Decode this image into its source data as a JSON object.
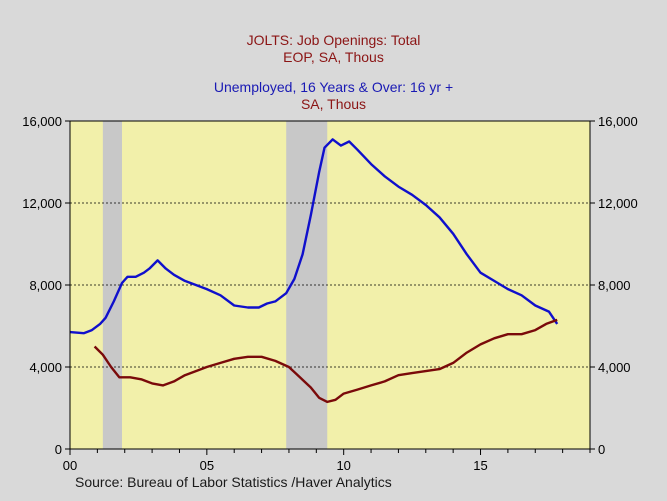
{
  "titles": {
    "line1": "JOLTS: Job Openings: Total",
    "line2": "EOP, SA, Thous",
    "line3": "Unemployed, 16 Years & Over: 16 yr +",
    "line4": "SA, Thous"
  },
  "source": "Source:  Bureau of Labor Statistics /Haver Analytics",
  "colors": {
    "background": "#d9d9d9",
    "plot_background": "#f2f0aa",
    "recession": "#c8c8c8",
    "unemployed": "#1010cc",
    "job_openings": "#7a0a0a"
  },
  "chart_data": {
    "type": "line",
    "x_ticks": [
      {
        "year": 2000,
        "label": "00"
      },
      {
        "year": 2005,
        "label": "05"
      },
      {
        "year": 2010,
        "label": "10"
      },
      {
        "year": 2015,
        "label": "15"
      }
    ],
    "xlim": [
      2000,
      2019
    ],
    "ylim": [
      0,
      16000
    ],
    "y_ticks": [
      0,
      4000,
      8000,
      12000,
      16000
    ],
    "y_tick_labels": [
      "0",
      "4,000",
      "8,000",
      "12,000",
      "16,000"
    ],
    "grid": "horizontal dotted",
    "recessions": [
      [
        2001.2,
        2001.9
      ],
      [
        2007.9,
        2009.4
      ]
    ],
    "series": [
      {
        "name": "Unemployed, 16 Years & Over: 16 yr +",
        "color": "#1010cc",
        "x": [
          2000.0,
          2000.5,
          2000.8,
          2001.1,
          2001.3,
          2001.6,
          2001.9,
          2002.1,
          2002.4,
          2002.7,
          2002.9,
          2003.2,
          2003.5,
          2003.8,
          2004.2,
          2004.6,
          2005.0,
          2005.5,
          2006.0,
          2006.5,
          2006.9,
          2007.2,
          2007.5,
          2007.9,
          2008.2,
          2008.5,
          2008.8,
          2009.1,
          2009.3,
          2009.6,
          2009.9,
          2010.2,
          2010.5,
          2011.0,
          2011.5,
          2012.0,
          2012.5,
          2013.0,
          2013.5,
          2014.0,
          2014.5,
          2015.0,
          2015.5,
          2016.0,
          2016.5,
          2017.0,
          2017.5,
          2017.8
        ],
        "values": [
          5700,
          5650,
          5800,
          6100,
          6400,
          7200,
          8100,
          8400,
          8400,
          8600,
          8800,
          9200,
          8800,
          8500,
          8200,
          8000,
          7800,
          7500,
          7000,
          6900,
          6900,
          7100,
          7200,
          7600,
          8300,
          9500,
          11400,
          13500,
          14700,
          15100,
          14800,
          15000,
          14600,
          13900,
          13300,
          12800,
          12400,
          11900,
          11300,
          10500,
          9500,
          8600,
          8200,
          7800,
          7500,
          7000,
          6700,
          6100
        ]
      },
      {
        "name": "JOLTS: Job Openings: Total",
        "color": "#7a0a0a",
        "x": [
          2000.9,
          2001.2,
          2001.5,
          2001.8,
          2002.2,
          2002.6,
          2003.0,
          2003.4,
          2003.8,
          2004.2,
          2004.6,
          2005.0,
          2005.5,
          2006.0,
          2006.5,
          2007.0,
          2007.5,
          2008.0,
          2008.4,
          2008.8,
          2009.1,
          2009.4,
          2009.7,
          2010.0,
          2010.5,
          2011.0,
          2011.5,
          2012.0,
          2012.5,
          2013.0,
          2013.5,
          2014.0,
          2014.5,
          2015.0,
          2015.5,
          2016.0,
          2016.5,
          2017.0,
          2017.4,
          2017.8
        ],
        "values": [
          5000,
          4600,
          4000,
          3500,
          3500,
          3400,
          3200,
          3100,
          3300,
          3600,
          3800,
          4000,
          4200,
          4400,
          4500,
          4500,
          4300,
          4000,
          3500,
          3000,
          2500,
          2300,
          2400,
          2700,
          2900,
          3100,
          3300,
          3600,
          3700,
          3800,
          3900,
          4200,
          4700,
          5100,
          5400,
          5600,
          5600,
          5800,
          6100,
          6300
        ]
      }
    ]
  }
}
